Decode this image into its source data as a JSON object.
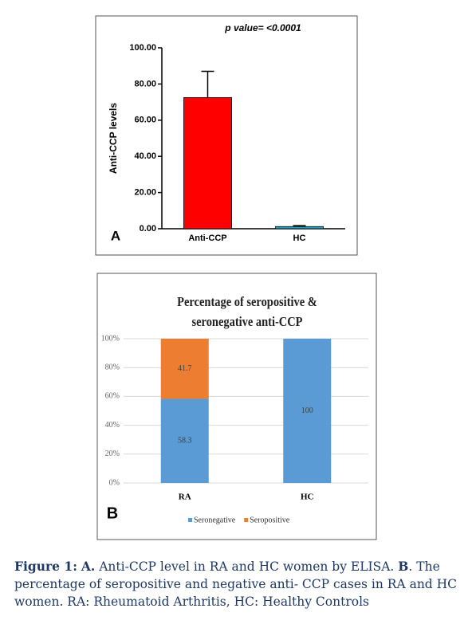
{
  "chart_data": [
    {
      "type": "bar",
      "panel": "A",
      "annotation": "p value= <0.0001",
      "y_label": "Anti-CCP levels",
      "categories": [
        "Anti-CCP",
        "HC"
      ],
      "values": [
        72.5,
        1.2
      ],
      "errors": [
        14.5,
        0.5
      ],
      "colors": [
        "#ff0000",
        "#1aa3c8"
      ],
      "ylim": [
        0,
        100
      ],
      "yticks": [
        {
          "value": 0,
          "label": "0.00"
        },
        {
          "value": 20,
          "label": "20.00"
        },
        {
          "value": 40,
          "label": "40.00"
        },
        {
          "value": 60,
          "label": "60.00"
        },
        {
          "value": 80,
          "label": "80.00"
        },
        {
          "value": 100,
          "label": "100.00"
        }
      ]
    },
    {
      "type": "stacked_bar",
      "panel": "B",
      "title": "Percentage of seropositive & seronegative anti-CCP",
      "categories": [
        "RA",
        "HC"
      ],
      "series": [
        {
          "name": "Seronegative",
          "color": "#5b9bd5",
          "values": [
            58.3,
            100
          ]
        },
        {
          "name": "Seropositive",
          "color": "#ed7d31",
          "values": [
            41.7,
            null
          ]
        }
      ],
      "ylim": [
        0,
        100
      ],
      "grid": true,
      "legend": "bottom",
      "yticks": [
        {
          "value": 0,
          "label": "0%"
        },
        {
          "value": 20,
          "label": "20%"
        },
        {
          "value": 40,
          "label": "40%"
        },
        {
          "value": 60,
          "label": "60%"
        },
        {
          "value": 80,
          "label": "80%"
        },
        {
          "value": 100,
          "label": "100%"
        }
      ]
    }
  ],
  "caption": [
    {
      "text": "Figure 1:",
      "bold": true
    },
    {
      "text": " ",
      "bold": false
    },
    {
      "text": "A.",
      "bold": true
    },
    {
      "text": " Anti-CCP level in RA and HC women by ELISA. ",
      "bold": false
    },
    {
      "text": "B",
      "bold": true
    },
    {
      "text": ". The percentage of seropositive and negative anti- CCP cases in RA and HC women. RA: Rheumatoid Arthritis, HC: Healthy Controls",
      "bold": false
    }
  ]
}
